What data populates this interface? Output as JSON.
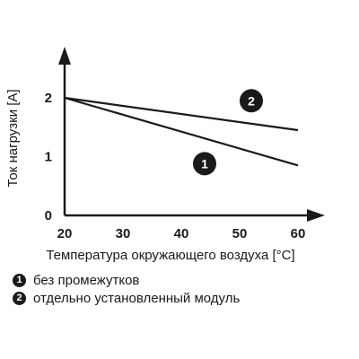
{
  "chart_data": {
    "type": "line",
    "xlabel": "Температура окружающего воздуха [°C]",
    "ylabel": "Ток нагрузки [A]",
    "xlim": [
      20,
      60
    ],
    "ylim": [
      0,
      2
    ],
    "xticks": [
      20,
      30,
      40,
      50,
      60
    ],
    "yticks": [
      0,
      1,
      2
    ],
    "grid": false,
    "series": [
      {
        "marker": "1",
        "x": [
          20,
          60
        ],
        "y": [
          2.0,
          0.85
        ],
        "label_at": [
          44,
          0.88
        ]
      },
      {
        "marker": "2",
        "x": [
          20,
          60
        ],
        "y": [
          2.0,
          1.45
        ],
        "label_at": [
          52,
          1.95
        ]
      }
    ],
    "legend": [
      {
        "marker": "1",
        "text": "без промежутков"
      },
      {
        "marker": "2",
        "text": "отдельно установленный модуль"
      }
    ]
  }
}
